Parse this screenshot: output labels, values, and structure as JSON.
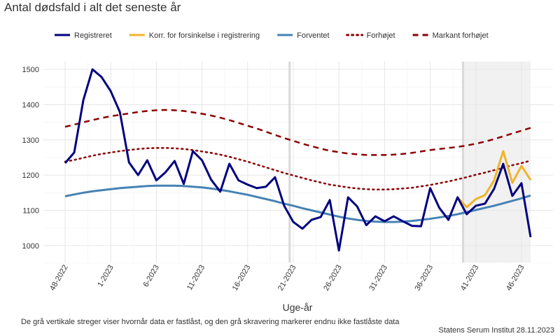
{
  "chart_data": {
    "type": "line",
    "title": "Antal dødsfald i alt det seneste år",
    "x_label": "Uge-år",
    "note": "De grå vertikale streger viser hvornår data er fastlåst, og den grå skravering markerer endnu ikke fastlåste data",
    "source": "Statens Serum Institut  28.11.2023",
    "categories": [
      "48-2022",
      null,
      null,
      null,
      null,
      "1-2023",
      null,
      null,
      null,
      null,
      "6-2023",
      null,
      null,
      null,
      null,
      "11-2023",
      null,
      null,
      null,
      null,
      "16-2023",
      null,
      null,
      null,
      null,
      "21-2023",
      null,
      null,
      null,
      null,
      "26-2023",
      null,
      null,
      null,
      null,
      "31-2023",
      null,
      null,
      null,
      null,
      "36-2023",
      null,
      null,
      null,
      null,
      "41-2023",
      null,
      null,
      null,
      null,
      "46-2023",
      null
    ],
    "series": [
      {
        "name": "Registreret",
        "color": "#000080",
        "dash": "solid",
        "values": [
          1234,
          1264,
          1413,
          1500,
          1478,
          1438,
          1379,
          1236,
          1200,
          1242,
          1185,
          1208,
          1240,
          1175,
          1268,
          1242,
          1187,
          1153,
          1232,
          1185,
          1173,
          1163,
          1167,
          1194,
          1113,
          1067,
          1048,
          1073,
          1081,
          1129,
          986,
          1137,
          1111,
          1058,
          1083,
          1069,
          1083,
          1069,
          1056,
          1055,
          1163,
          1107,
          1073,
          1137,
          1089,
          1113,
          1119,
          1161,
          1232,
          1141,
          1177,
          1024
        ]
      },
      {
        "name": "Korr. for forsinkelse i registrering",
        "color": "#f0b429",
        "dash": "solid",
        "values": [
          null,
          null,
          null,
          null,
          null,
          null,
          null,
          null,
          null,
          null,
          null,
          null,
          null,
          null,
          null,
          null,
          null,
          null,
          null,
          null,
          null,
          null,
          null,
          null,
          null,
          null,
          null,
          null,
          null,
          null,
          null,
          null,
          null,
          null,
          null,
          null,
          null,
          null,
          null,
          null,
          null,
          null,
          null,
          1137,
          1109,
          1132,
          1143,
          1185,
          1268,
          1178,
          1226,
          1186
        ]
      },
      {
        "name": "Forventet",
        "color": "#4682b4",
        "dash": "solid",
        "values": [
          1140,
          1145,
          1150,
          1154,
          1157,
          1160,
          1163,
          1165,
          1167,
          1169,
          1170,
          1170,
          1170,
          1169,
          1167,
          1165,
          1162,
          1158,
          1154,
          1149,
          1144,
          1138,
          1132,
          1126,
          1119,
          1113,
          1106,
          1100,
          1094,
          1088,
          1082,
          1077,
          1073,
          1070,
          1068,
          1067,
          1067,
          1068,
          1070,
          1073,
          1076,
          1080,
          1084,
          1089,
          1095,
          1101,
          1107,
          1113,
          1120,
          1127,
          1134,
          1142
        ]
      },
      {
        "name": "Forhøjet",
        "color": "#8b0000",
        "dash": "dotted",
        "values": [
          1238,
          1243,
          1249,
          1255,
          1260,
          1264,
          1268,
          1271,
          1274,
          1276,
          1277,
          1277,
          1276,
          1274,
          1271,
          1267,
          1263,
          1258,
          1252,
          1245,
          1238,
          1230,
          1222,
          1214,
          1206,
          1199,
          1192,
          1185,
          1179,
          1173,
          1169,
          1165,
          1162,
          1160,
          1159,
          1159,
          1160,
          1162,
          1164,
          1168,
          1172,
          1177,
          1182,
          1188,
          1194,
          1201,
          1207,
          1214,
          1221,
          1228,
          1234,
          1241
        ]
      },
      {
        "name": "Markant forhøjet",
        "color": "#8b0000",
        "dash": "dashed",
        "values": [
          1337,
          1343,
          1350,
          1356,
          1362,
          1367,
          1371,
          1375,
          1379,
          1382,
          1384,
          1385,
          1384,
          1382,
          1378,
          1374,
          1369,
          1363,
          1356,
          1348,
          1340,
          1332,
          1323,
          1314,
          1305,
          1297,
          1289,
          1282,
          1275,
          1269,
          1265,
          1261,
          1259,
          1257,
          1257,
          1257,
          1258,
          1260,
          1263,
          1267,
          1271,
          1274,
          1277,
          1280,
          1284,
          1289,
          1295,
          1302,
          1310,
          1318,
          1326,
          1334
        ]
      }
    ],
    "ylim": [
      952,
      1522
    ],
    "yticks": [
      1000,
      1100,
      1200,
      1300,
      1400,
      1500
    ],
    "grid": true,
    "legend": "top"
  }
}
